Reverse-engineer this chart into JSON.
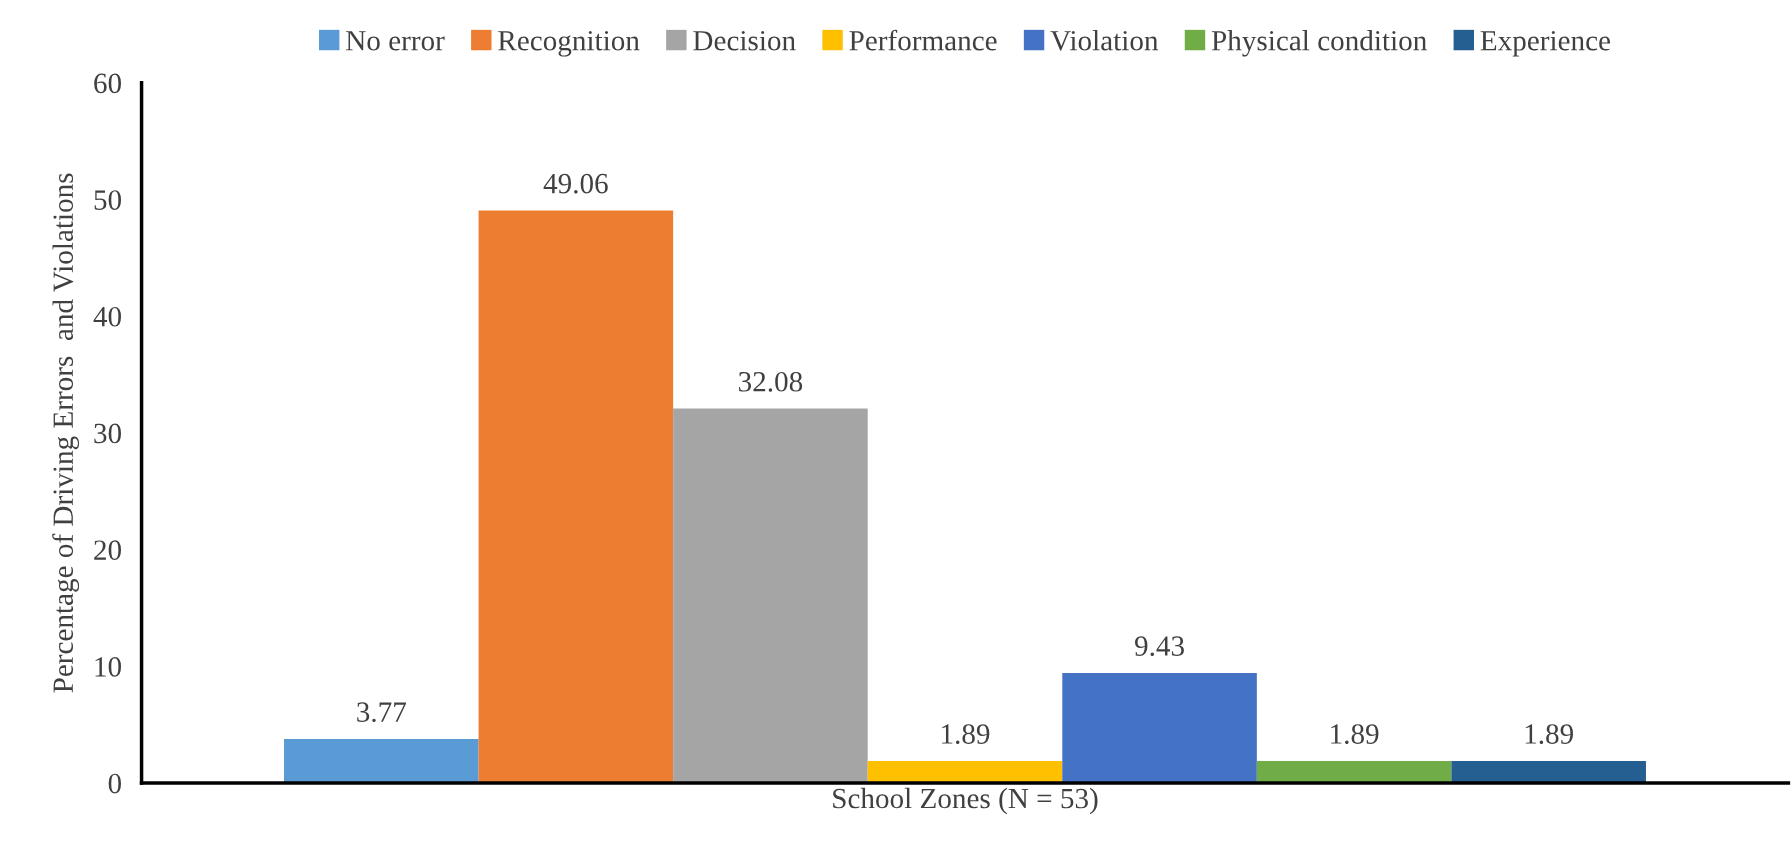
{
  "chart_data": {
    "type": "bar",
    "xlabel": "School Zones (N = 53)",
    "ylabel": "Percentage of Driving Errors  and Violations",
    "categories": [
      null
    ],
    "series": [
      {
        "name": "No error",
        "color": "#5b9bd5",
        "values": [
          3.77
        ]
      },
      {
        "name": "Recognition",
        "color": "#ed7d31",
        "values": [
          49.06
        ]
      },
      {
        "name": "Decision",
        "color": "#a5a5a5",
        "values": [
          32.08
        ]
      },
      {
        "name": "Performance",
        "color": "#ffc000",
        "values": [
          1.89
        ]
      },
      {
        "name": "Violation",
        "color": "#4472c4",
        "values": [
          9.43
        ]
      },
      {
        "name": "Physical condition",
        "color": "#70ad47",
        "values": [
          1.89
        ]
      },
      {
        "name": "Experience",
        "color": "#255e91",
        "values": [
          1.89
        ]
      }
    ],
    "ylim": [
      0,
      60
    ],
    "yticks": [
      0,
      10,
      20,
      30,
      40,
      50,
      60
    ],
    "data_labels": true,
    "grid": false,
    "legend": "top"
  }
}
